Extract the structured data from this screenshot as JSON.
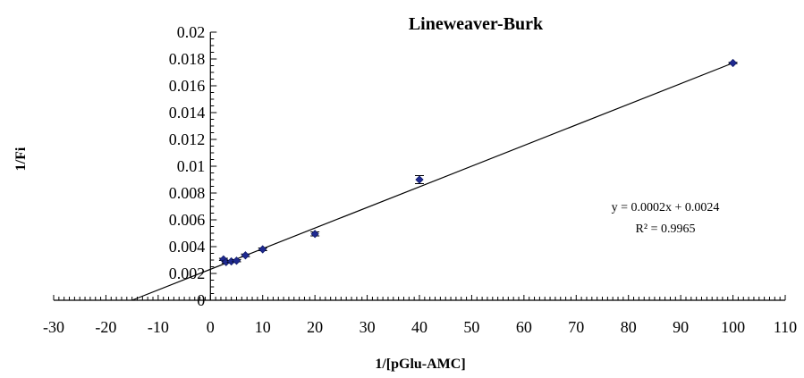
{
  "chart_data": {
    "type": "scatter",
    "title": "Lineweaver-Burk",
    "xlabel": "1/[pGlu-AMC]",
    "ylabel": "1/Fi",
    "xlim": [
      -30,
      110
    ],
    "ylim": [
      0,
      0.02
    ],
    "x_ticks": [
      "-30",
      "-20",
      "-10",
      "0",
      "10",
      "20",
      "30",
      "40",
      "50",
      "60",
      "70",
      "80",
      "90",
      "100",
      "110"
    ],
    "y_ticks": [
      "0",
      "0.002",
      "0.004",
      "0.006",
      "0.008",
      "0.01",
      "0.012",
      "0.014",
      "0.016",
      "0.018",
      "0.02"
    ],
    "grid": false,
    "points": [
      {
        "x": 2.5,
        "y": 0.00305,
        "err": 8e-05
      },
      {
        "x": 3.0,
        "y": 0.00285,
        "err": 8e-05
      },
      {
        "x": 4.0,
        "y": 0.0029,
        "err": 8e-05
      },
      {
        "x": 5.0,
        "y": 0.00295,
        "err": 8e-05
      },
      {
        "x": 6.7,
        "y": 0.00335,
        "err": 0.0001
      },
      {
        "x": 10,
        "y": 0.0038,
        "err": 0.0001
      },
      {
        "x": 20,
        "y": 0.00495,
        "err": 0.00015
      },
      {
        "x": 40,
        "y": 0.009,
        "err": 0.0003
      },
      {
        "x": 100,
        "y": 0.0177,
        "err": 5e-05
      }
    ],
    "trendline": {
      "x_start": -15,
      "y_start": 0,
      "x_end": 100,
      "y_end": 0.0177
    },
    "equation": "y = 0.0002x + 0.0024",
    "r_squared": "R² = 0.9965",
    "marker_color": "#1f2a8f",
    "line_color": "#000000"
  }
}
